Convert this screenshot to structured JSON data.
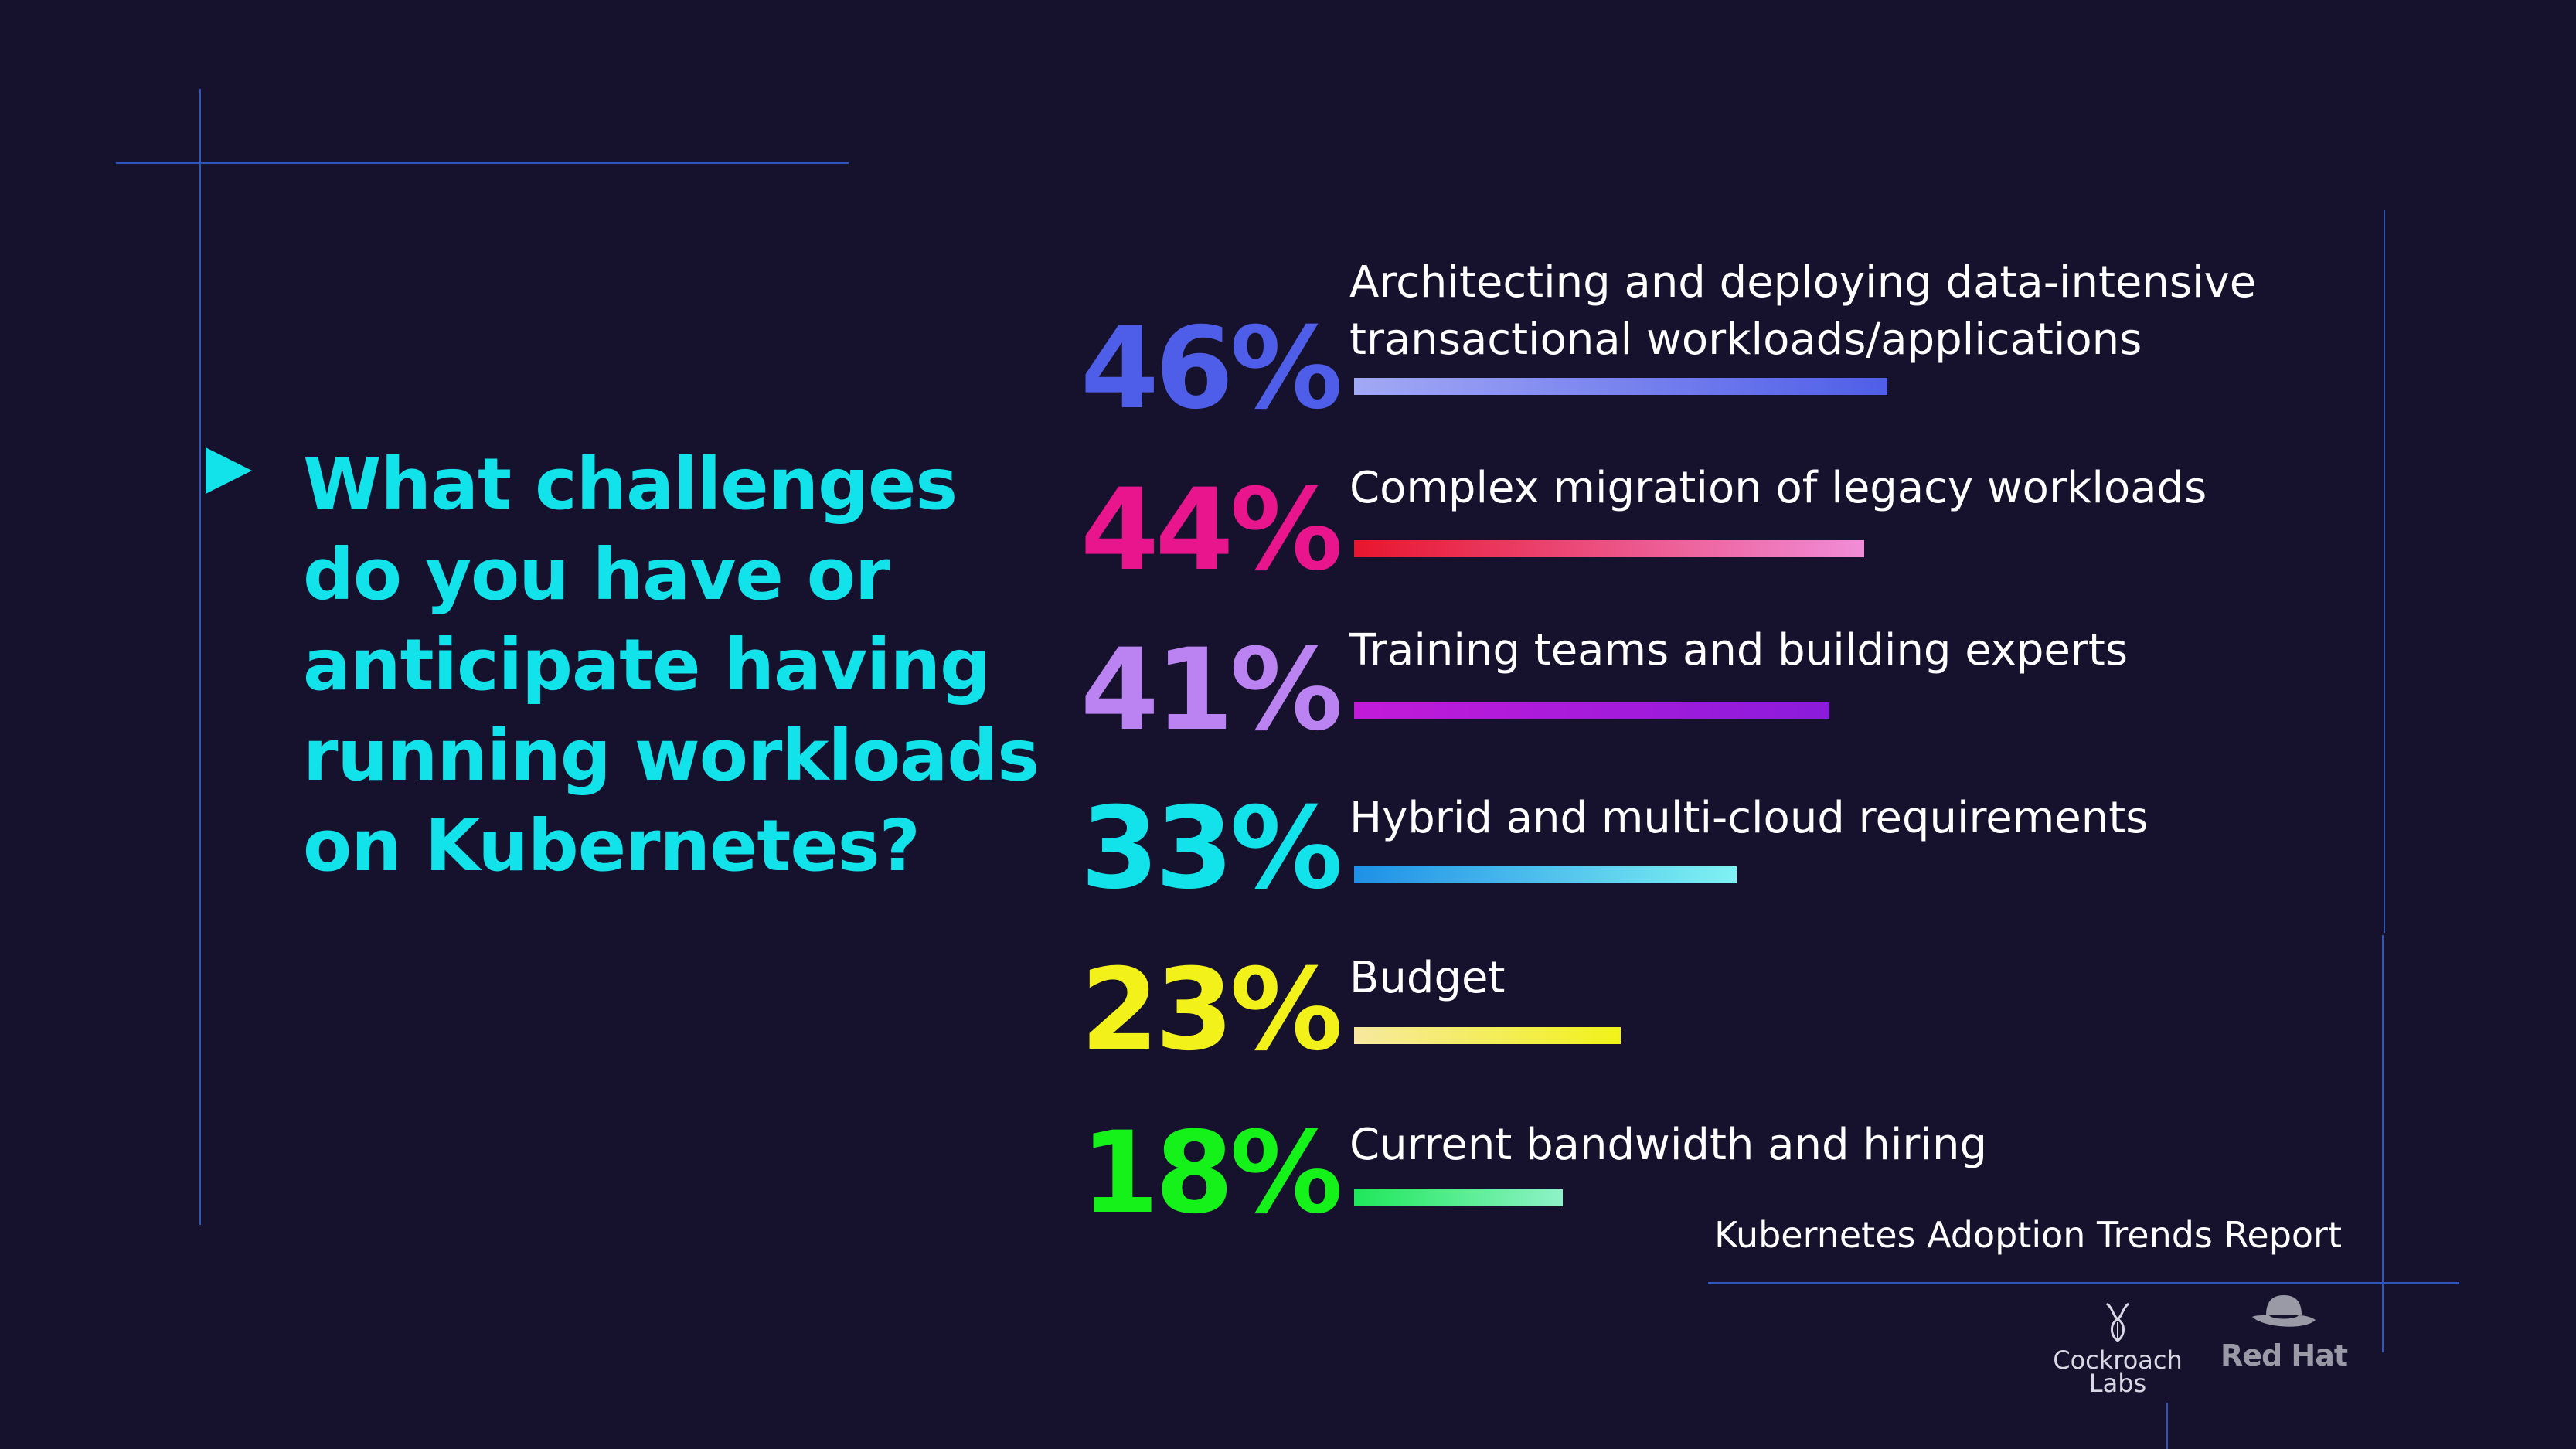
{
  "question": "What challenges do you have or anticipate having running workloads on Kubernetes?",
  "footer": {
    "report_title": "Kubernetes Adoption Trends Report",
    "logos": [
      "Cockroach Labs",
      "Red Hat"
    ]
  },
  "chart_data": {
    "type": "bar",
    "orientation": "horizontal",
    "unit": "%",
    "categories": [
      "Architecting and deploying data-intensive transactional workloads/applications",
      "Complex migration of legacy workloads",
      "Training teams and building experts",
      "Hybrid and multi-cloud requirements",
      "Budget",
      "Current bandwidth and hiring"
    ],
    "values": [
      46,
      44,
      41,
      33,
      23,
      18
    ],
    "value_labels": [
      "46%",
      "44%",
      "41%",
      "33%",
      "23%",
      "18%"
    ],
    "colors": [
      {
        "value": "#4f5ee8",
        "bar": [
          "#a2a9f5",
          "#4f5ee8"
        ]
      },
      {
        "value": "#e8158c",
        "bar": [
          "#e8152e",
          "#f08dd8"
        ]
      },
      {
        "value": "#bb82f2",
        "bar": [
          "#c21bd8",
          "#8b1bdc"
        ]
      },
      {
        "value": "#12e2ea",
        "bar": [
          "#1e90e8",
          "#7ff2f2"
        ]
      },
      {
        "value": "#f2f21a",
        "bar": [
          "#f7e8a0",
          "#f2f21a"
        ]
      },
      {
        "value": "#14f21a",
        "bar": [
          "#1ee85a",
          "#8ff2c8"
        ]
      }
    ],
    "title": "",
    "xlabel": "",
    "ylabel": "",
    "xlim": [
      0,
      46
    ],
    "grid": false
  }
}
